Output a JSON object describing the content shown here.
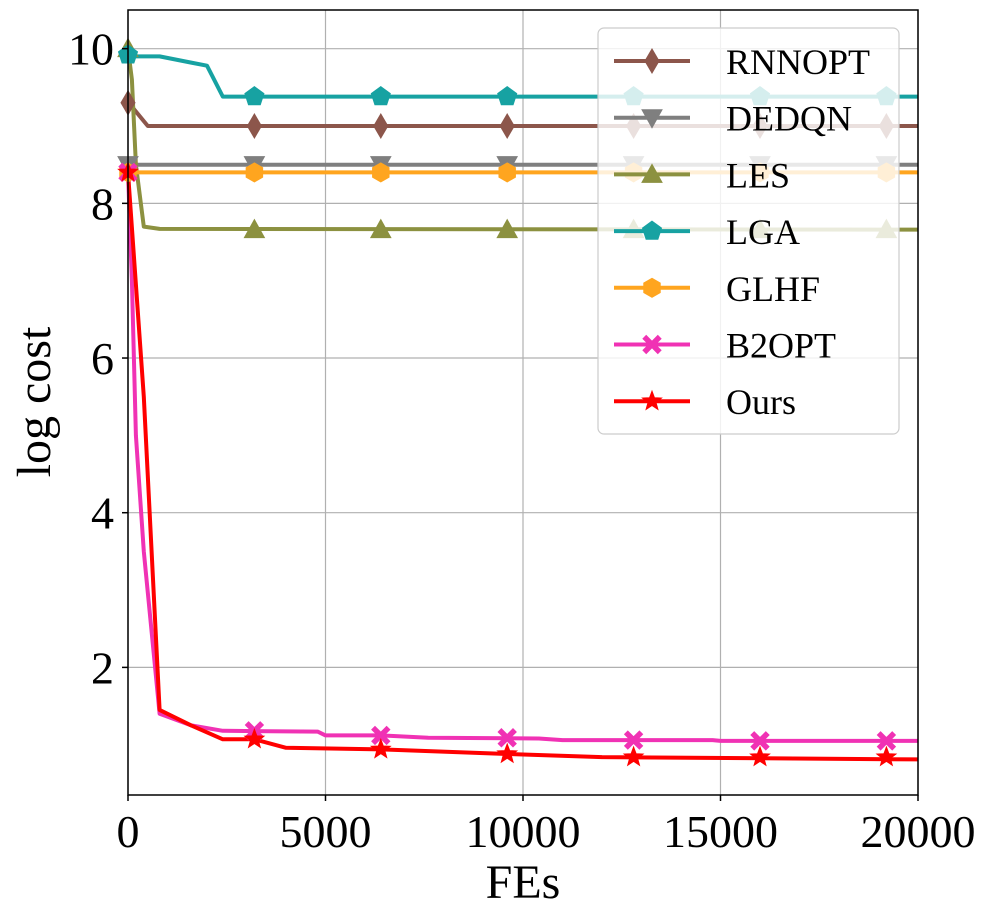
{
  "chart_data": {
    "type": "line",
    "title": "",
    "xlabel": "FEs",
    "ylabel": "log cost",
    "xlim": [
      0,
      20000
    ],
    "ylim": [
      0.35,
      10.5
    ],
    "xticks": [
      0,
      5000,
      10000,
      15000,
      20000
    ],
    "yticks": [
      2,
      4,
      6,
      8,
      10
    ],
    "xtick_labels": [
      "0",
      "5000",
      "10000",
      "15000",
      "20000"
    ],
    "ytick_labels": [
      "2",
      "4",
      "6",
      "8",
      "10"
    ],
    "grid": true,
    "legend_position": "top-right",
    "series": [
      {
        "name": "RNNOPT",
        "color": "#8c564b",
        "marker": "diamond",
        "x": [
          0,
          100,
          500,
          20000
        ],
        "y": [
          9.35,
          9.25,
          9.0,
          9.0
        ],
        "marker_x": [
          0,
          3200,
          6400,
          9600,
          12800,
          16000,
          19200
        ],
        "marker_y": [
          9.3,
          9.0,
          9.0,
          9.0,
          9.0,
          9.0,
          9.0
        ]
      },
      {
        "name": "DEDQN",
        "color": "#7f7f7f",
        "marker": "triangle-down",
        "x": [
          0,
          20000
        ],
        "y": [
          8.5,
          8.5
        ],
        "marker_x": [
          0,
          3200,
          6400,
          9600,
          12800,
          16000,
          19200
        ],
        "marker_y": [
          8.5,
          8.5,
          8.5,
          8.5,
          8.5,
          8.5,
          8.5
        ]
      },
      {
        "name": "LES",
        "color": "#8c9140",
        "marker": "triangle-up",
        "x": [
          0,
          100,
          200,
          400,
          800,
          20000
        ],
        "y": [
          10.0,
          9.6,
          8.5,
          7.7,
          7.67,
          7.66
        ],
        "marker_x": [
          0,
          3200,
          6400,
          9600,
          12800,
          16000,
          19200
        ],
        "marker_y": [
          10.0,
          7.66,
          7.66,
          7.66,
          7.66,
          7.66,
          7.66
        ]
      },
      {
        "name": "LGA",
        "color": "#17a2a2",
        "marker": "pentagon",
        "x": [
          0,
          100,
          800,
          1600,
          2000,
          2400,
          20000
        ],
        "y": [
          9.95,
          9.9,
          9.9,
          9.82,
          9.78,
          9.38,
          9.38
        ],
        "marker_x": [
          0,
          3200,
          6400,
          9600,
          12800,
          16000,
          19200
        ],
        "marker_y": [
          9.92,
          9.38,
          9.38,
          9.38,
          9.38,
          9.38,
          9.38
        ]
      },
      {
        "name": "GLHF",
        "color": "#ffa51f",
        "marker": "hexagon",
        "x": [
          0,
          20000
        ],
        "y": [
          8.4,
          8.4
        ],
        "marker_x": [
          0,
          3200,
          6400,
          9600,
          12800,
          16000,
          19200
        ],
        "marker_y": [
          8.4,
          8.4,
          8.4,
          8.4,
          8.4,
          8.4,
          8.4
        ]
      },
      {
        "name": "B2OPT",
        "color": "#f032b4",
        "marker": "x",
        "x": [
          0,
          100,
          200,
          400,
          800,
          1600,
          2400,
          4800,
          5000,
          6400,
          7600,
          10400,
          11000,
          14800,
          15000,
          20000
        ],
        "y": [
          8.4,
          7.0,
          5.0,
          3.5,
          1.4,
          1.25,
          1.18,
          1.17,
          1.12,
          1.12,
          1.09,
          1.08,
          1.06,
          1.06,
          1.05,
          1.05
        ],
        "marker_x": [
          0,
          3200,
          6400,
          9600,
          12800,
          16000,
          19200
        ],
        "marker_y": [
          8.4,
          1.18,
          1.12,
          1.09,
          1.06,
          1.05,
          1.05
        ]
      },
      {
        "name": "Ours",
        "color": "#ff0000",
        "marker": "star",
        "x": [
          0,
          400,
          800,
          1600,
          2400,
          3200,
          4000,
          6400,
          9600,
          12000,
          20000
        ],
        "y": [
          8.4,
          5.5,
          1.45,
          1.25,
          1.07,
          1.07,
          0.96,
          0.94,
          0.88,
          0.84,
          0.81
        ],
        "marker_x": [
          0,
          3200,
          6400,
          9600,
          12800,
          16000,
          19200
        ],
        "marker_y": [
          8.4,
          1.07,
          0.94,
          0.88,
          0.84,
          0.84,
          0.84
        ]
      }
    ]
  }
}
